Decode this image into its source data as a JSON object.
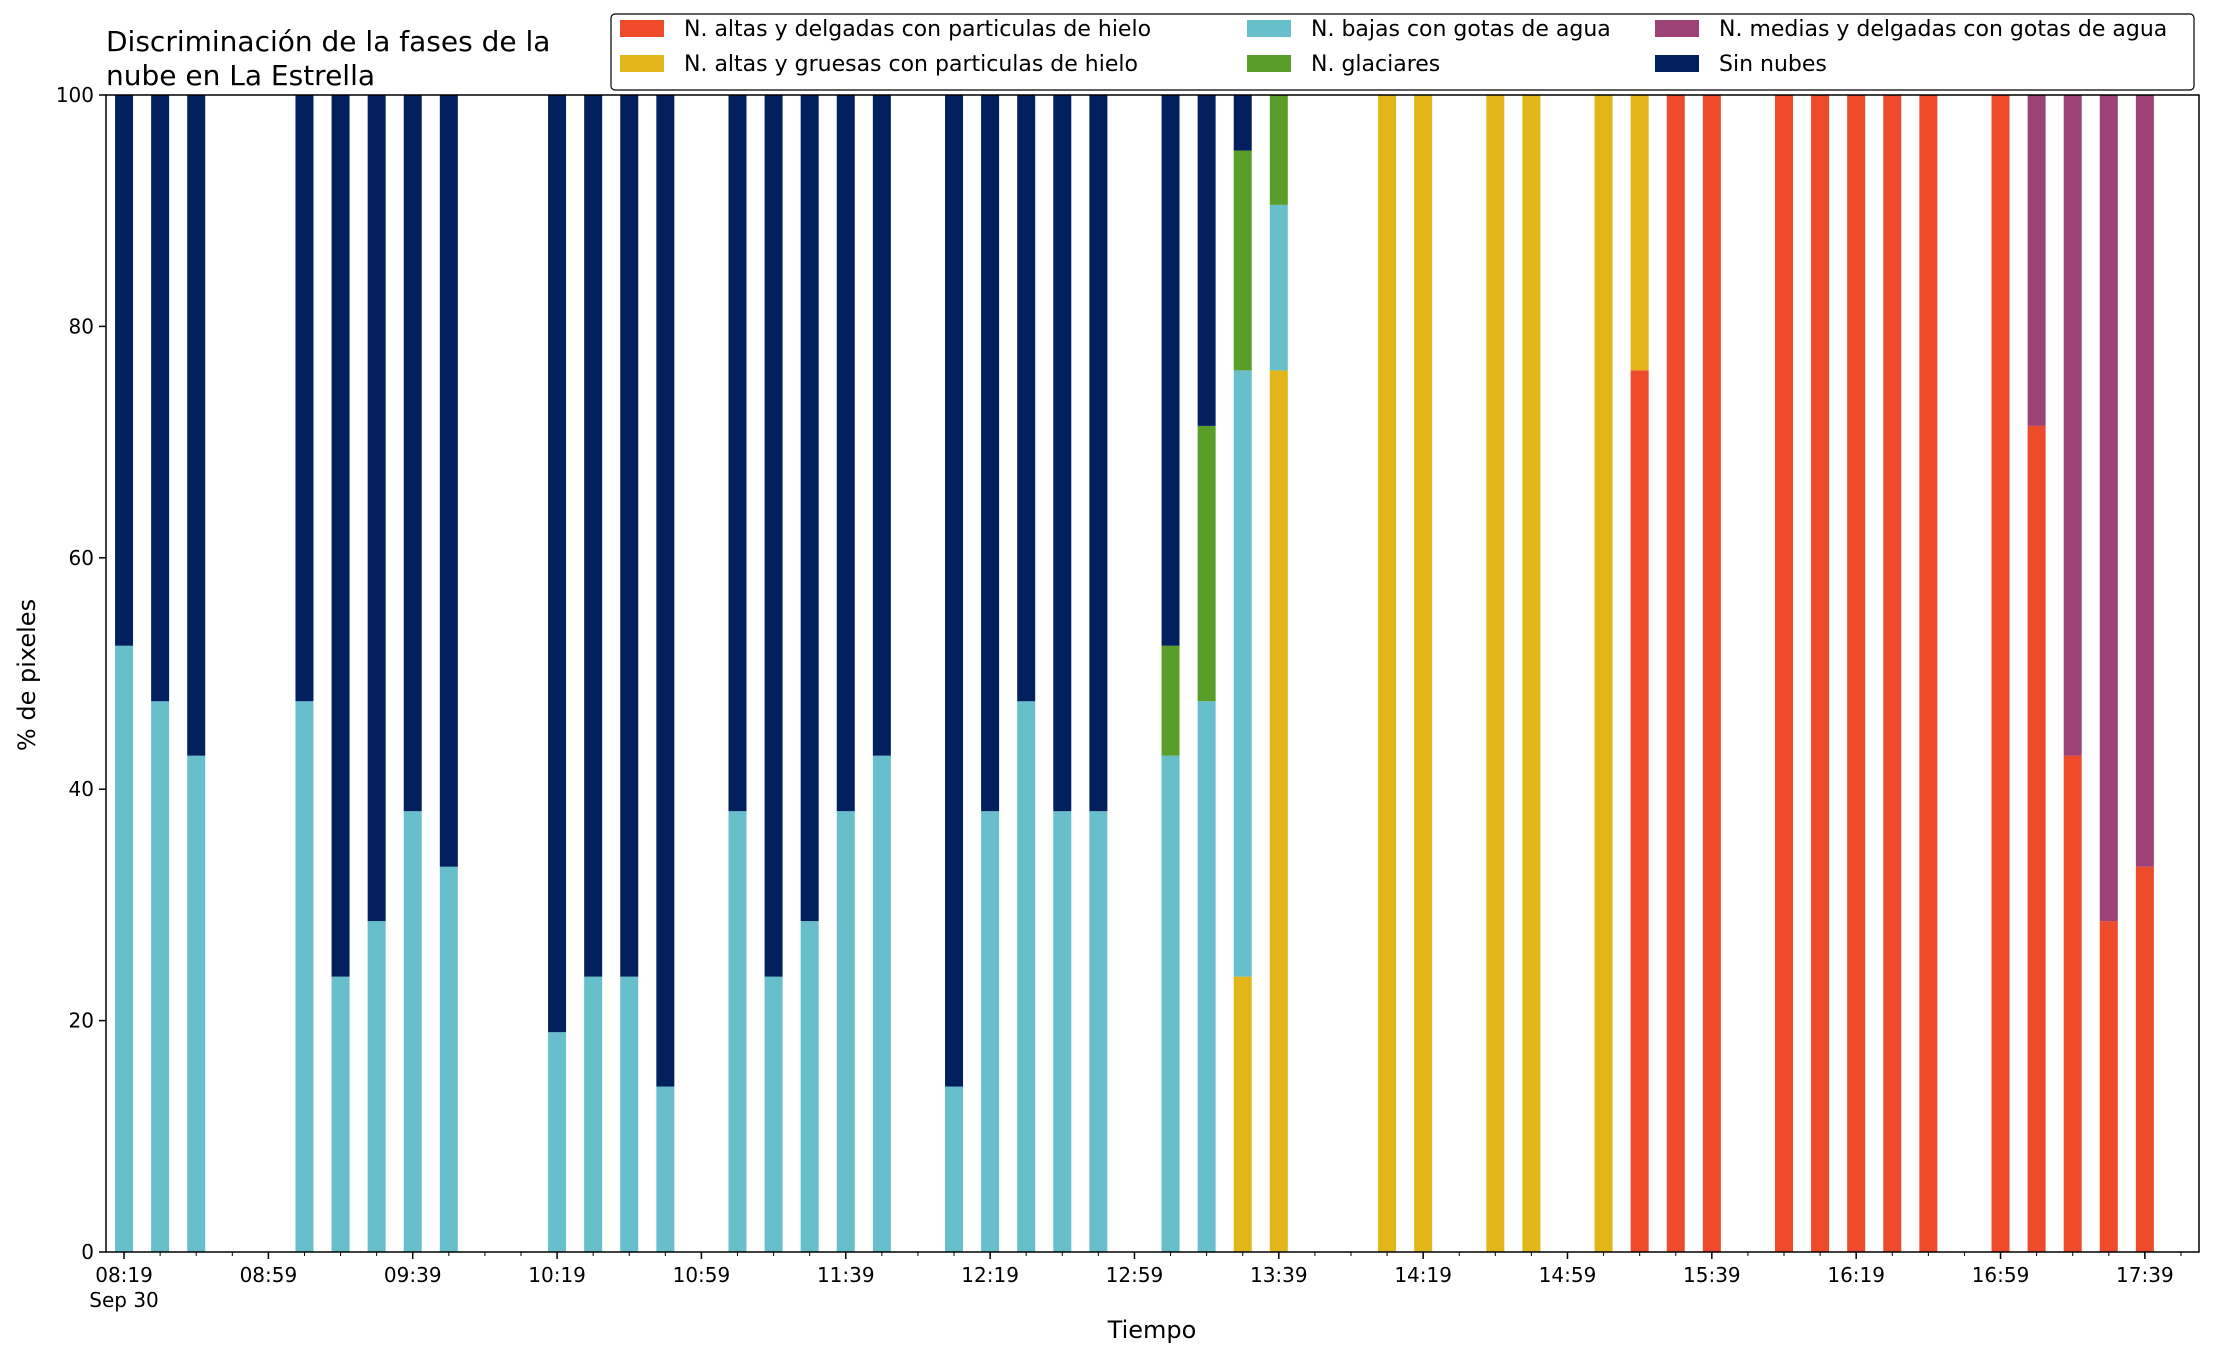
{
  "chart_data": {
    "type": "bar",
    "stacked": true,
    "title": "Discriminación de la fases de la nube en La Estrella",
    "title_lines": [
      "Discriminación de la fases de la",
      "nube en La Estrella"
    ],
    "xlabel": "Tiempo",
    "ylabel": "% de pixeles",
    "ylim": [
      0,
      100
    ],
    "yticks": [
      0,
      20,
      40,
      60,
      80,
      100
    ],
    "x_time_range": [
      "08:14",
      "17:54"
    ],
    "x_step_minutes": 10,
    "xtick_labels": [
      "08:19",
      "08:59",
      "09:39",
      "10:19",
      "10:59",
      "11:39",
      "12:19",
      "12:59",
      "13:39",
      "14:19",
      "14:59",
      "15:39",
      "16:19",
      "16:59",
      "17:39"
    ],
    "x_date_label": "Sep 30",
    "legend_position": "top-right",
    "series": [
      {
        "name": "N. altas y delgadas con particulas de hielo",
        "color": "#ee4b2b",
        "points": {
          "15:19": 76.2,
          "15:29": 100,
          "15:39": 100,
          "15:59": 100,
          "16:09": 100,
          "16:19": 100,
          "16:29": 100,
          "16:39": 100,
          "16:59": 100,
          "17:09": 71.4,
          "17:19": 42.9,
          "17:29": 28.6,
          "17:39": 33.3
        }
      },
      {
        "name": "N. altas y gruesas con particulas de hielo",
        "color": "#e2b619",
        "points": {
          "13:29": 23.8,
          "13:39": 76.2,
          "14:09": 100,
          "14:19": 100,
          "14:39": 100,
          "14:49": 100,
          "15:09": 100,
          "15:19": 23.8
        }
      },
      {
        "name": "N. bajas con gotas de agua",
        "color": "#67bfcb",
        "points": {
          "08:19": 52.4,
          "08:29": 47.6,
          "08:39": 42.9,
          "09:09": 47.6,
          "09:19": 23.8,
          "09:29": 28.6,
          "09:39": 38.1,
          "09:49": 33.3,
          "10:19": 19.0,
          "10:29": 23.8,
          "10:39": 23.8,
          "10:49": 14.3,
          "11:09": 38.1,
          "11:19": 23.8,
          "11:29": 28.6,
          "11:39": 38.1,
          "11:49": 42.9,
          "12:09": 14.3,
          "12:19": 38.1,
          "12:29": 47.6,
          "12:39": 38.1,
          "12:49": 38.1,
          "13:09": 42.9,
          "13:19": 47.6,
          "13:29": 52.4,
          "13:39": 14.3
        }
      },
      {
        "name": "N. glaciares",
        "color": "#5a9e2a",
        "points": {
          "13:09": 9.5,
          "13:19": 23.8,
          "13:29": 19.0,
          "13:39": 9.5
        }
      },
      {
        "name": "N. medias y delgadas con gotas de agua",
        "color": "#9d4276",
        "points": {
          "17:09": 28.6,
          "17:19": 57.1,
          "17:29": 71.4,
          "17:39": 66.7
        }
      },
      {
        "name": "Sin nubes",
        "color": "#021f5e",
        "points": {
          "08:19": 47.6,
          "08:29": 52.4,
          "08:39": 57.1,
          "09:09": 52.4,
          "09:19": 76.2,
          "09:29": 71.4,
          "09:39": 61.9,
          "09:49": 66.7,
          "10:19": 81.0,
          "10:29": 76.2,
          "10:39": 76.2,
          "10:49": 85.7,
          "11:09": 61.9,
          "11:19": 76.2,
          "11:29": 71.4,
          "11:39": 61.9,
          "11:49": 57.1,
          "12:09": 85.7,
          "12:19": 61.9,
          "12:29": 52.4,
          "12:39": 61.9,
          "12:49": 61.9,
          "13:09": 47.6,
          "13:19": 28.6,
          "13:29": 4.8
        }
      }
    ]
  }
}
